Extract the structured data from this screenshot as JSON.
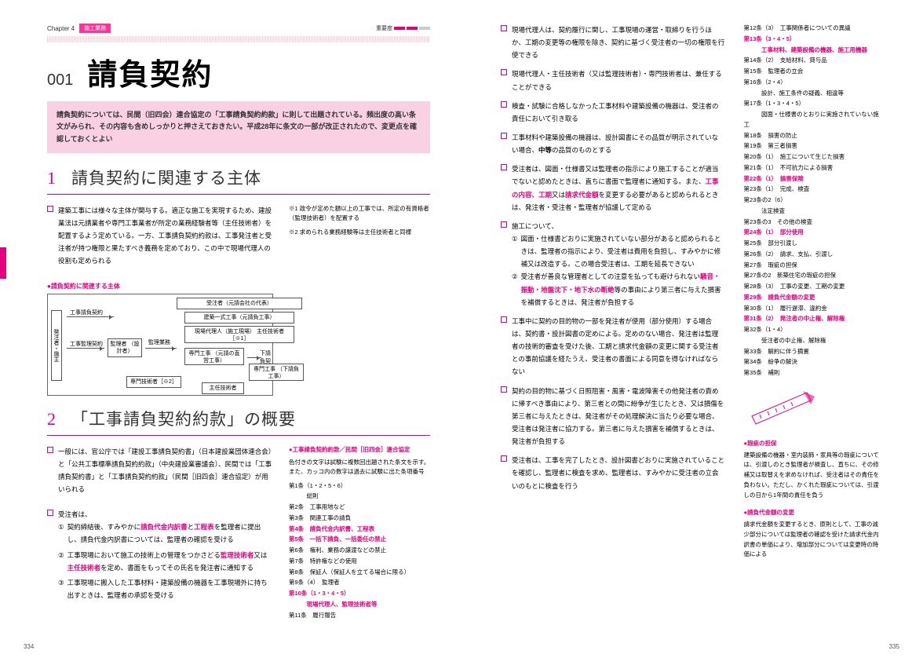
{
  "meta": {
    "pageLeft": "334",
    "pageRight": "335"
  },
  "header": {
    "chapter": "Chapter 4",
    "tag": "施工業務",
    "importanceLabel": "重要度",
    "importanceLevel": 2
  },
  "article": {
    "number": "001",
    "title": "請負契約",
    "lead": "請負契約については、民間（旧四会）連合協定の「工事請負契約約款」に則して出題されている。頻出度の高い条文がみられ、その内容も含めしっかりと押さえておきたい。平成28年に条文の一部が改正されたので、変更点を確認しておくとよい"
  },
  "sec1": {
    "no": "1",
    "title": "請負契約に関連する主体",
    "body1": "建築工事には様々な主体が関与する。適正な施工を実現するため、建設業法は元請業者や専門工事業者が所定の業務経験者等（主任技術者）を配置するよう定めている。一方、工事請負契約約款は、工事発注者と受注者が持つ権限と果たすべき義務を定めており、この中で現場代理人の役割も定められる",
    "note1": "※1 政令が定めた額以上の工事では、所定の有資格者（監理技術者）を配置する",
    "note2": "※2 求められる業務経験等は主任技術者と同様",
    "diagramTitle": "●請負契約に関連する主体",
    "diagram": {
      "hatOwner": "発注者・施主",
      "contract": "工事請負契約",
      "supervise": "工事監理契約",
      "supervisor": "監理者\n（設計者）",
      "supWork": "監理業務",
      "ordererRep": "受注者（元請会社の代表）",
      "primeWork": "建築一式工事（元請負工事）",
      "siteAgent": "現場代理人（施工現場）\n主任技術者［※1］",
      "specWork": "専門工事\n（元請の直営工事）",
      "specTech": "専門技術者［※2］",
      "subContract": "下請負契約",
      "subSpec": "専門工事\n（下請負工事）",
      "subChief": "主任技術者"
    }
  },
  "sec2": {
    "no": "2",
    "title": "「工事請負契約約款」の概要",
    "body1": "一般には、官公庁では「建設工事請負契約書」（日本建設業団体連合会）と「公共工事標準請負契約約款」（中央建設業審議会）、民間では「工事請負契約書」と「工事請負契約約款」（民間［旧四会］連合協定）が用いられる",
    "body2Lead": "受注者は、",
    "body2Items": [
      {
        "n": "①",
        "t": "契約締結後、すみやかに<span class='red-b'>請負代金内訳書</span>と<span class='red-b'>工程表</span>を監理者に提出し、請負代金内訳書については、監理者の確認を受ける"
      },
      {
        "n": "②",
        "t": "工事現場において施工の技術上の管理をつかさどる<span class='red-b'>監理技術者</span>又は<span class='red-b'>主任技術者</span>を定め、書面をもってその氏名を発注者に通知する"
      },
      {
        "n": "③",
        "t": "工事現場に搬入した工事材料・建築設備の機器を工事現場外に持ち出すときは、監理者の承認を受ける"
      }
    ],
    "sideTitle": "●工事請負契約約款／民間［旧四会］連合協定",
    "sideLead": "色付きの文字は試験に複数回出題された条文を示す。また、カッコ内の数字は過去に試験に出た条項番号",
    "articles1": [
      {
        "k": "第1条（1・2・5・6）",
        "v": ""
      },
      {
        "k": "",
        "v": "総則"
      },
      {
        "k": "第2条",
        "v": "工事用地など"
      },
      {
        "k": "第3条",
        "v": "関連工事の請負"
      },
      {
        "k": "第4条",
        "v": "請負代金内訳書、工程表",
        "red": true
      },
      {
        "k": "第5条",
        "v": "一括下請負、一括委任の禁止",
        "red": true
      },
      {
        "k": "第6条",
        "v": "権利、業務の譲渡などの禁止"
      },
      {
        "k": "第7条",
        "v": "特許権などの使用"
      },
      {
        "k": "第8条",
        "v": "保証人（保証人を立てる場合に限る）"
      },
      {
        "k": "第9条（4）",
        "v": "監理者"
      },
      {
        "k": "第10条（1・3・4・5）",
        "v": "",
        "red": true
      },
      {
        "k": "",
        "v": "現場代理人、監理技術者等",
        "red": true
      },
      {
        "k": "第11条",
        "v": "履行報告"
      }
    ]
  },
  "rightPage": {
    "bullets": [
      "現場代理人は、契約履行に関し、工事現場の運営・取締りを行うほか、工期の変更等の権限を除き、契約に基づく受注者の一切の権限を行使できる",
      "現場代理人・主任技術者（又は監理技術者）・専門技術者は、兼任することができる",
      "検査・試験に合格しなかった工事材料や建築設備の機器は、受注者の責任において引き取る",
      "工事材料や建築設備の機器は、設計図書にその品質が明示されていない場合、<span class='bold'>中等</span>の品質のものとする",
      "受注者は、図面・仕様書又は監理者の指示により施工することが適当でないと認めたときは、直ちに書面で監理者に通知する。また、<span class='red-b'>工事の内容、工期</span>又は<span class='red-b'>請求代金額</span>を変更する必要があると認められるときは、発注者・受注者・監理者が協議して定める",
      "__construction__",
      "工事中に契約の目的物の一部を発注者が使用（部分使用）する場合は、契約書・設計図書の定めによる。定めのない場合、発注者は監理者の技術的審査を受けた後、工期と請求代金額の変更に関する受注者との事前協議を経たうえ、受注者の書面による同意を得なければならない",
      "契約の目的物に基づく日照阻害・風害・電波障害その他発注者の責めに帰すべき事由により、第三者との間に紛争が生じたとき、又は損傷を第三者に与えたときは、発注者がその処理解決に当たり必要な場合、受注者は発注者に協力する。第三者に与えた損害を補償するときは、発注者が負担する",
      "受注者は、工事を完了したとき、設計図書どおりに実施されていることを確認し、監理者に検査を求め、監理者は、すみやかに受注者の立会いのもとに検査を行う"
    ],
    "construction": {
      "lead": "施工について、",
      "items": [
        {
          "n": "①",
          "t": "図面・仕様書どおりに実施されていない部分があると認められるときは、監理者の指示により、受注者は費用を負担し、すみやかに修補又は改造する。この場合受注者は、工期を延長できない"
        },
        {
          "n": "②",
          "t": "受注者が善良な管理者としての注意を払っても避けられない<span class='red-b'>騒音・振動・地盤沈下・地下水の断絶</span>等の事由により第三者に与えた損害を補償するときは、発注者が負担する"
        }
      ]
    },
    "articles2": [
      {
        "k": "第12条（3）",
        "v": "工事関係者についての異議"
      },
      {
        "k": "第13条（3・4・5）",
        "v": "",
        "red": true
      },
      {
        "k": "",
        "v": "工事材料、建築設備の機器、施工用機器",
        "red": true
      },
      {
        "k": "第14条（2）",
        "v": "支給材料、貸与品"
      },
      {
        "k": "第15条",
        "v": "監理者の立会"
      },
      {
        "k": "第16条（2・4）",
        "v": ""
      },
      {
        "k": "",
        "v": "設計、施工条件の疑義、相違等"
      },
      {
        "k": "第17条（1・3・4・5）",
        "v": ""
      },
      {
        "k": "",
        "v": "図面・仕様書のとおりに実施されていない施工"
      },
      {
        "k": "第18条",
        "v": "損害の防止"
      },
      {
        "k": "第19条",
        "v": "第三者損害"
      },
      {
        "k": "第20条（1）",
        "v": "施工について生じた損害"
      },
      {
        "k": "第21条（1）",
        "v": "不可抗力による損害"
      },
      {
        "k": "第22条（1）",
        "v": "損害保険",
        "red": true
      },
      {
        "k": "第23条（1）",
        "v": "完成、検査"
      },
      {
        "k": "第23条の2（6）",
        "v": ""
      },
      {
        "k": "",
        "v": "法定検査"
      },
      {
        "k": "第23条の3",
        "v": "その他の検査"
      },
      {
        "k": "第24条（1）",
        "v": "部分使用",
        "red": true
      },
      {
        "k": "第25条",
        "v": "部分引渡し"
      },
      {
        "k": "第26条（2）",
        "v": "請求、支払、引渡し"
      },
      {
        "k": "第27条",
        "v": "瑕疵の担保"
      },
      {
        "k": "第27条の2",
        "v": "新築住宅の瑕疵の担保"
      },
      {
        "k": "第28条（3）",
        "v": "工事の変更、工期の変更"
      },
      {
        "k": "第29条",
        "v": "請負代金額の変更",
        "red": true
      },
      {
        "k": "第30条（1）",
        "v": "履行遅滞、違約金"
      },
      {
        "k": "第31条（2）",
        "v": "発注者の中止権、解除権",
        "red": true
      },
      {
        "k": "第32条（1・4）",
        "v": ""
      },
      {
        "k": "",
        "v": "受注者の中止権、解除権"
      },
      {
        "k": "第33条",
        "v": "解約に伴う摘置"
      },
      {
        "k": "第34条",
        "v": "紛争の解決"
      },
      {
        "k": "第35条",
        "v": "補則"
      }
    ],
    "colNote1": {
      "title": "●瑕疵の担保",
      "body": "建築設備の機器・室内装飾・家具等の瑕疵については、引渡しのとき監理者が検査し、直ちに、その修補又は取替えを求めなければ、受注者はその責任を負わない。ただし、かくれた瑕疵については、引渡しの日から1年間の責任を負う"
    },
    "colNote2": {
      "title": "●請負代金額の変更",
      "body": "請求代金額を変更するとき、原則として、工事の減少部分については監理者の確認を受けた請求代金内訳書の単価により、増加部分については変更時の時価による"
    }
  },
  "colors": {
    "brand": "#e6007e",
    "leadBg": "#f9d1e3"
  }
}
